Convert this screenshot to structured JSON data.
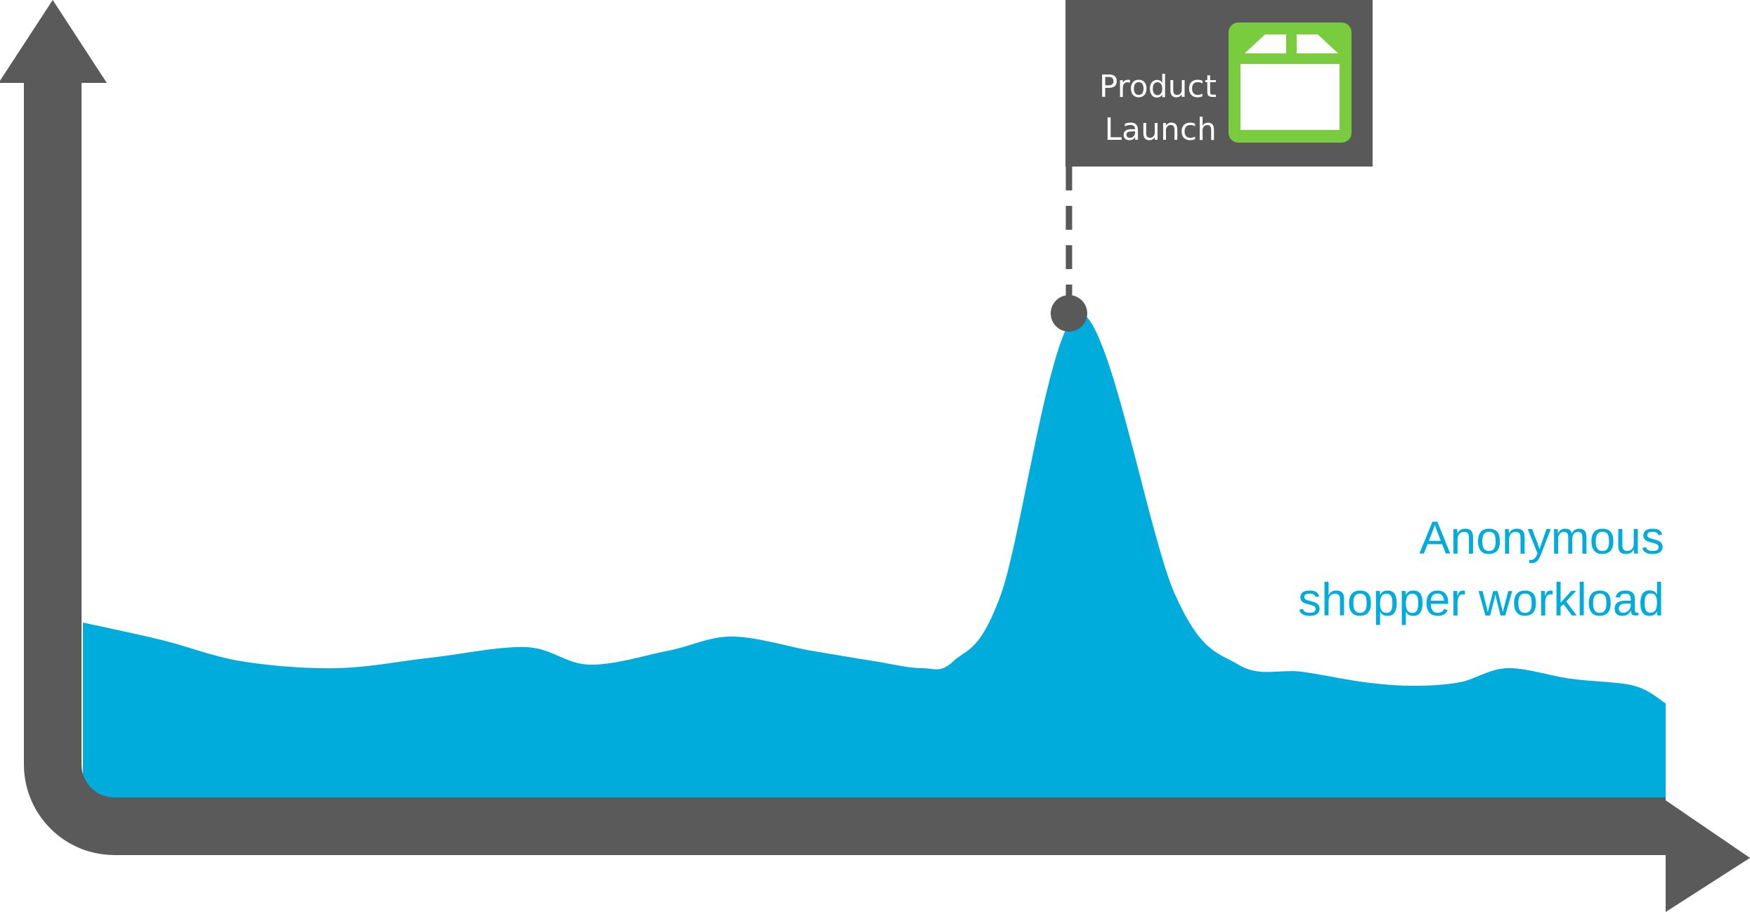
{
  "chart_data": {
    "type": "area",
    "title": "",
    "xlabel": "",
    "ylabel": "",
    "axes_style": "thick-arrows-no-ticks",
    "grid": false,
    "series": [
      {
        "name": "Anonymous shopper workload",
        "x": [
          0,
          5,
          10,
          16,
          22,
          28,
          32,
          37,
          41,
          46,
          50,
          53,
          55,
          58,
          63,
          69,
          73,
          77,
          81,
          84,
          87,
          90,
          94,
          98,
          100
        ],
        "values": [
          29,
          26.5,
          23.5,
          22.5,
          24,
          25.5,
          23,
          25,
          27,
          25,
          23.5,
          22.5,
          23.5,
          33,
          73,
          33,
          23,
          22,
          20.5,
          20,
          20.5,
          22.5,
          21,
          20,
          17.5
        ]
      }
    ],
    "ylim": [
      0,
      100
    ],
    "xlim": [
      0,
      100
    ],
    "annotations": [
      {
        "text_lines": [
          "Product",
          "Launch"
        ],
        "x": 62.3,
        "y": 73,
        "icon": "window-browser-icon"
      }
    ],
    "colors": {
      "area": "#00acdc",
      "axis": "#5a5a5a",
      "callout_bg": "#595959",
      "icon_green": "#7acc3f",
      "label_text": "#00acdc"
    }
  }
}
